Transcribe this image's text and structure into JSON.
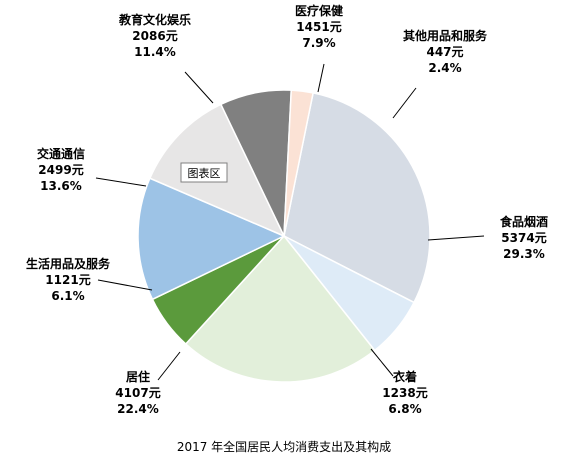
{
  "chart_data": {
    "type": "pie",
    "title": "2017 年全国居民人均消费支出及其构成",
    "slices": [
      {
        "name": "食品烟酒",
        "amount": "5374元",
        "percent": "29.3%",
        "value": 29.3,
        "color": "#d6dce5"
      },
      {
        "name": "衣着",
        "amount": "1238元",
        "percent": "6.8%",
        "value": 6.8,
        "color": "#deebf7"
      },
      {
        "name": "居住",
        "amount": "4107元",
        "percent": "22.4%",
        "value": 22.4,
        "color": "#e2efda"
      },
      {
        "name": "生活用品及服务",
        "amount": "1121元",
        "percent": "6.1%",
        "value": 6.1,
        "color": "#5b9a3c"
      },
      {
        "name": "交通通信",
        "amount": "2499元",
        "percent": "13.6%",
        "value": 13.6,
        "color": "#9dc3e6"
      },
      {
        "name": "教育文化娱乐",
        "amount": "2086元",
        "percent": "11.4%",
        "value": 11.4,
        "color": "#e7e6e6"
      },
      {
        "name": "医疗保健",
        "amount": "1451元",
        "percent": "7.9%",
        "value": 7.9,
        "color": "#808080"
      },
      {
        "name": "其他用品和服务",
        "amount": "447元",
        "percent": "2.4%",
        "value": 2.4,
        "color": "#fbe2d5"
      }
    ],
    "tooltip": "图表区"
  }
}
